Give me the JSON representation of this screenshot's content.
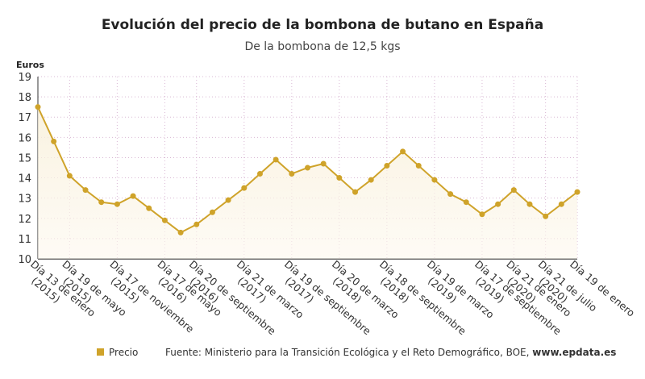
{
  "chart_data": {
    "type": "line",
    "title": "Evolución del precio de la bombona de butano en España",
    "subtitle": "De la bombona de 12,5 kgs",
    "y_label": "Euros",
    "categories": [
      "Día 13 de enero (2015)",
      null,
      "Día 19 de mayo (2015)",
      null,
      null,
      "Día 17 de noviembre (2015)",
      null,
      null,
      "Día 17 de mayo (2016)",
      null,
      "Día 20 de septiembre (2016)",
      null,
      null,
      "Día 21 de marzo (2017)",
      null,
      null,
      "Día 19 de septiembre (2017)",
      null,
      null,
      "Día 20 de marzo (2018)",
      null,
      null,
      "Día 18 de septiembre (2018)",
      null,
      null,
      "Día 19 de marzo (2019)",
      null,
      null,
      "Día 17 de septiembre (2019)",
      null,
      "Día 21 de enero (2020)",
      null,
      "Día 21 de julio (2020)",
      null,
      "Día 19 de enero"
    ],
    "series": [
      {
        "name": "Precio",
        "color": "#cfa32a",
        "values": [
          17.5,
          15.8,
          14.1,
          13.4,
          12.8,
          12.7,
          13.1,
          12.5,
          11.9,
          11.3,
          11.7,
          12.3,
          12.9,
          13.5,
          14.2,
          14.9,
          14.2,
          14.5,
          14.7,
          14.0,
          13.3,
          13.9,
          14.6,
          15.3,
          14.6,
          13.9,
          13.2,
          12.8,
          12.2,
          12.7,
          13.4,
          12.7,
          12.1,
          12.7,
          13.3
        ]
      }
    ],
    "ylim": [
      10,
      19
    ],
    "yticks": [
      10,
      11,
      12,
      13,
      14,
      15,
      16,
      17,
      18,
      19
    ],
    "grid": true,
    "source": "Fuente: Ministerio para la Transición Ecológica y el Reto Demográfico, BOE, ",
    "source_link": "www.epdata.es"
  }
}
